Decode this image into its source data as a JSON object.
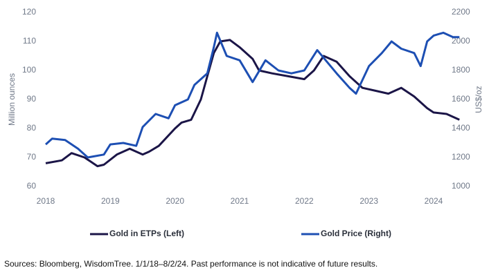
{
  "chart_data": {
    "type": "line",
    "source": "Sources: Bloomberg, WisdomTree. 1/1/18–8/2/24. Past performance is not indicative of future results.",
    "ylabel": "Million ounces",
    "y2label": "US$/oz",
    "xlim": [
      2018,
      2024.6
    ],
    "xticks": [
      2018,
      2019,
      2020,
      2021,
      2022,
      2023,
      2024
    ],
    "ylim": [
      60,
      120
    ],
    "yticks": [
      60,
      70,
      80,
      90,
      100,
      110,
      120
    ],
    "y2lim": [
      1000,
      2200
    ],
    "y2ticks": [
      1000,
      1200,
      1400,
      1600,
      1800,
      2000,
      2200
    ],
    "series": [
      {
        "name": "Gold in ETPs (Left)",
        "color": "#1b1547",
        "axis": "y",
        "x": [
          2018.0,
          2018.25,
          2018.4,
          2018.6,
          2018.8,
          2018.9,
          2019.1,
          2019.3,
          2019.5,
          2019.6,
          2019.75,
          2020.0,
          2020.1,
          2020.25,
          2020.4,
          2020.5,
          2020.6,
          2020.7,
          2020.85,
          2021.0,
          2021.2,
          2021.3,
          2021.5,
          2021.75,
          2022.0,
          2022.15,
          2022.3,
          2022.5,
          2022.7,
          2022.9,
          2023.1,
          2023.3,
          2023.5,
          2023.7,
          2023.9,
          2024.0,
          2024.2,
          2024.4
        ],
        "values": [
          68,
          69,
          71.5,
          70,
          67,
          67.5,
          71,
          73,
          71,
          72,
          74,
          80,
          82,
          83,
          90,
          98,
          106,
          110,
          110.5,
          108,
          104,
          100,
          99,
          98,
          97,
          100,
          105,
          103,
          98,
          94,
          93,
          92,
          94,
          91,
          87,
          85.5,
          85,
          83
        ]
      },
      {
        "name": "Gold Price (Right)",
        "color": "#1d4fb3",
        "axis": "y2",
        "x": [
          2018.0,
          2018.1,
          2018.3,
          2018.5,
          2018.65,
          2018.9,
          2019.0,
          2019.2,
          2019.4,
          2019.5,
          2019.7,
          2019.9,
          2020.0,
          2020.2,
          2020.3,
          2020.5,
          2020.6,
          2020.65,
          2020.8,
          2021.0,
          2021.2,
          2021.4,
          2021.6,
          2021.8,
          2022.0,
          2022.2,
          2022.35,
          2022.5,
          2022.7,
          2022.8,
          2023.0,
          2023.2,
          2023.35,
          2023.5,
          2023.7,
          2023.8,
          2023.9,
          2024.0,
          2024.15,
          2024.3,
          2024.4
        ],
        "values": [
          1290,
          1330,
          1320,
          1260,
          1200,
          1220,
          1290,
          1300,
          1280,
          1410,
          1500,
          1470,
          1560,
          1600,
          1700,
          1780,
          1960,
          2060,
          1900,
          1870,
          1720,
          1870,
          1800,
          1780,
          1800,
          1940,
          1860,
          1780,
          1680,
          1640,
          1830,
          1920,
          2000,
          1950,
          1920,
          1830,
          2000,
          2040,
          2060,
          2030,
          2030
        ]
      }
    ]
  }
}
